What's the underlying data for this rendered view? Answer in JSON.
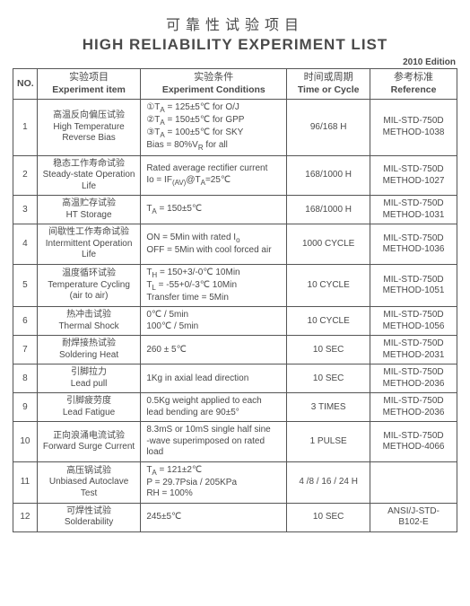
{
  "title_cn": "可靠性试验项目",
  "title_en": "HIGH RELIABILITY EXPERIMENT LIST",
  "edition": "2010 Edition",
  "columns": {
    "no": {
      "cn": "NO.",
      "en": ""
    },
    "item": {
      "cn": "实验项目",
      "en": "Experiment item"
    },
    "cond": {
      "cn": "实验条件",
      "en": "Experiment Conditions"
    },
    "time": {
      "cn": "时间或周期",
      "en": "Time or Cycle"
    },
    "ref": {
      "cn": "参考标准",
      "en": "Reference"
    }
  },
  "rows": [
    {
      "no": "1",
      "item_cn": "高温反向偏压试验",
      "item_en": "High Temperature Reverse Bias",
      "cond_html": "①T<span class=sub>A</span> = 125±5℃ for O/J<br>②T<span class=sub>A</span> = 150±5℃ for GPP<br>③T<span class=sub>A</span> = 100±5℃ for SKY<br>Bias = 80%V<span class=sub>R</span> for all",
      "time": "96/168 H",
      "ref_html": "MIL-STD-750D<br>METHOD-1038"
    },
    {
      "no": "2",
      "item_cn": "稳态工作寿命试验",
      "item_en": "Steady-state Operation Life",
      "cond_html": "Rated average rectifier current<br>Io = IF<span class=sub>(AV)</span>@T<span class=sub>A</span>=25℃",
      "time": "168/1000 H",
      "ref_html": "MIL-STD-750D<br>METHOD-1027"
    },
    {
      "no": "3",
      "item_cn": "高温贮存试验",
      "item_en": "HT Storage",
      "cond_html": "T<span class=sub>A</span> = 150±5℃",
      "time": "168/1000 H",
      "ref_html": "MIL-STD-750D<br>METHOD-1031"
    },
    {
      "no": "4",
      "item_cn": "间歇性工作寿命试验",
      "item_en": "Intermittent Operation Life",
      "cond_html": "ON = 5Min with rated I<span class=sub>o</span><br>OFF = 5Min with cool forced air",
      "time": "1000 CYCLE",
      "ref_html": "MIL-STD-750D<br>METHOD-1036"
    },
    {
      "no": "5",
      "item_cn": "温度循环试验",
      "item_en": "Temperature Cycling (air to air)",
      "cond_html": "T<span class=sub>H</span> = 150+3/-0℃ 10Min<br>T<span class=sub>L</span> = -55+0/-3℃ 10Min<br>Transfer time = 5Min",
      "time": "10 CYCLE",
      "ref_html": "MIL-STD-750D<br>METHOD-1051"
    },
    {
      "no": "6",
      "item_cn": "热冲击试验",
      "item_en": "Thermal Shock",
      "cond_html": "0℃ / 5min<br>100℃ / 5min",
      "time": "10 CYCLE",
      "ref_html": "MIL-STD-750D<br>METHOD-1056"
    },
    {
      "no": "7",
      "item_cn": "耐焊接热试验",
      "item_en": "Soldering Heat",
      "cond_html": "260 ± 5℃",
      "time": "10 SEC",
      "ref_html": "MIL-STD-750D<br>METHOD-2031"
    },
    {
      "no": "8",
      "item_cn": "引脚拉力",
      "item_en": "Lead pull",
      "cond_html": "1Kg in axial lead direction",
      "time": "10 SEC",
      "ref_html": "MIL-STD-750D<br>METHOD-2036"
    },
    {
      "no": "9",
      "item_cn": "引脚疲劳度",
      "item_en": "Lead Fatigue",
      "cond_html": "0.5Kg weight applied to each<br>lead bending are 90±5°",
      "time": "3 TIMES",
      "ref_html": "MIL-STD-750D<br>METHOD-2036"
    },
    {
      "no": "10",
      "item_cn": "正向浪涌电流试验",
      "item_en": "Forward Surge Current",
      "cond_html": "8.3mS or 10mS single half sine<br>-wave superimposed on rated<br>load",
      "time": "1 PULSE",
      "ref_html": "MIL-STD-750D<br>METHOD-4066"
    },
    {
      "no": "11",
      "item_cn": "高压锅试验",
      "item_en": "Unbiased Autoclave Test",
      "cond_html": "T<span class=sub>A</span> = 121±2℃<br>P = 29.7Psia / 205KPa<br>RH = 100%",
      "time": "4 /8 / 16 / 24 H",
      "ref_html": ""
    },
    {
      "no": "12",
      "item_cn": "可焊性试验",
      "item_en": "Solderability",
      "cond_html": "245±5℃",
      "time": "10 SEC",
      "ref_html": "ANSI/J-STD-<br>B102-E"
    }
  ]
}
